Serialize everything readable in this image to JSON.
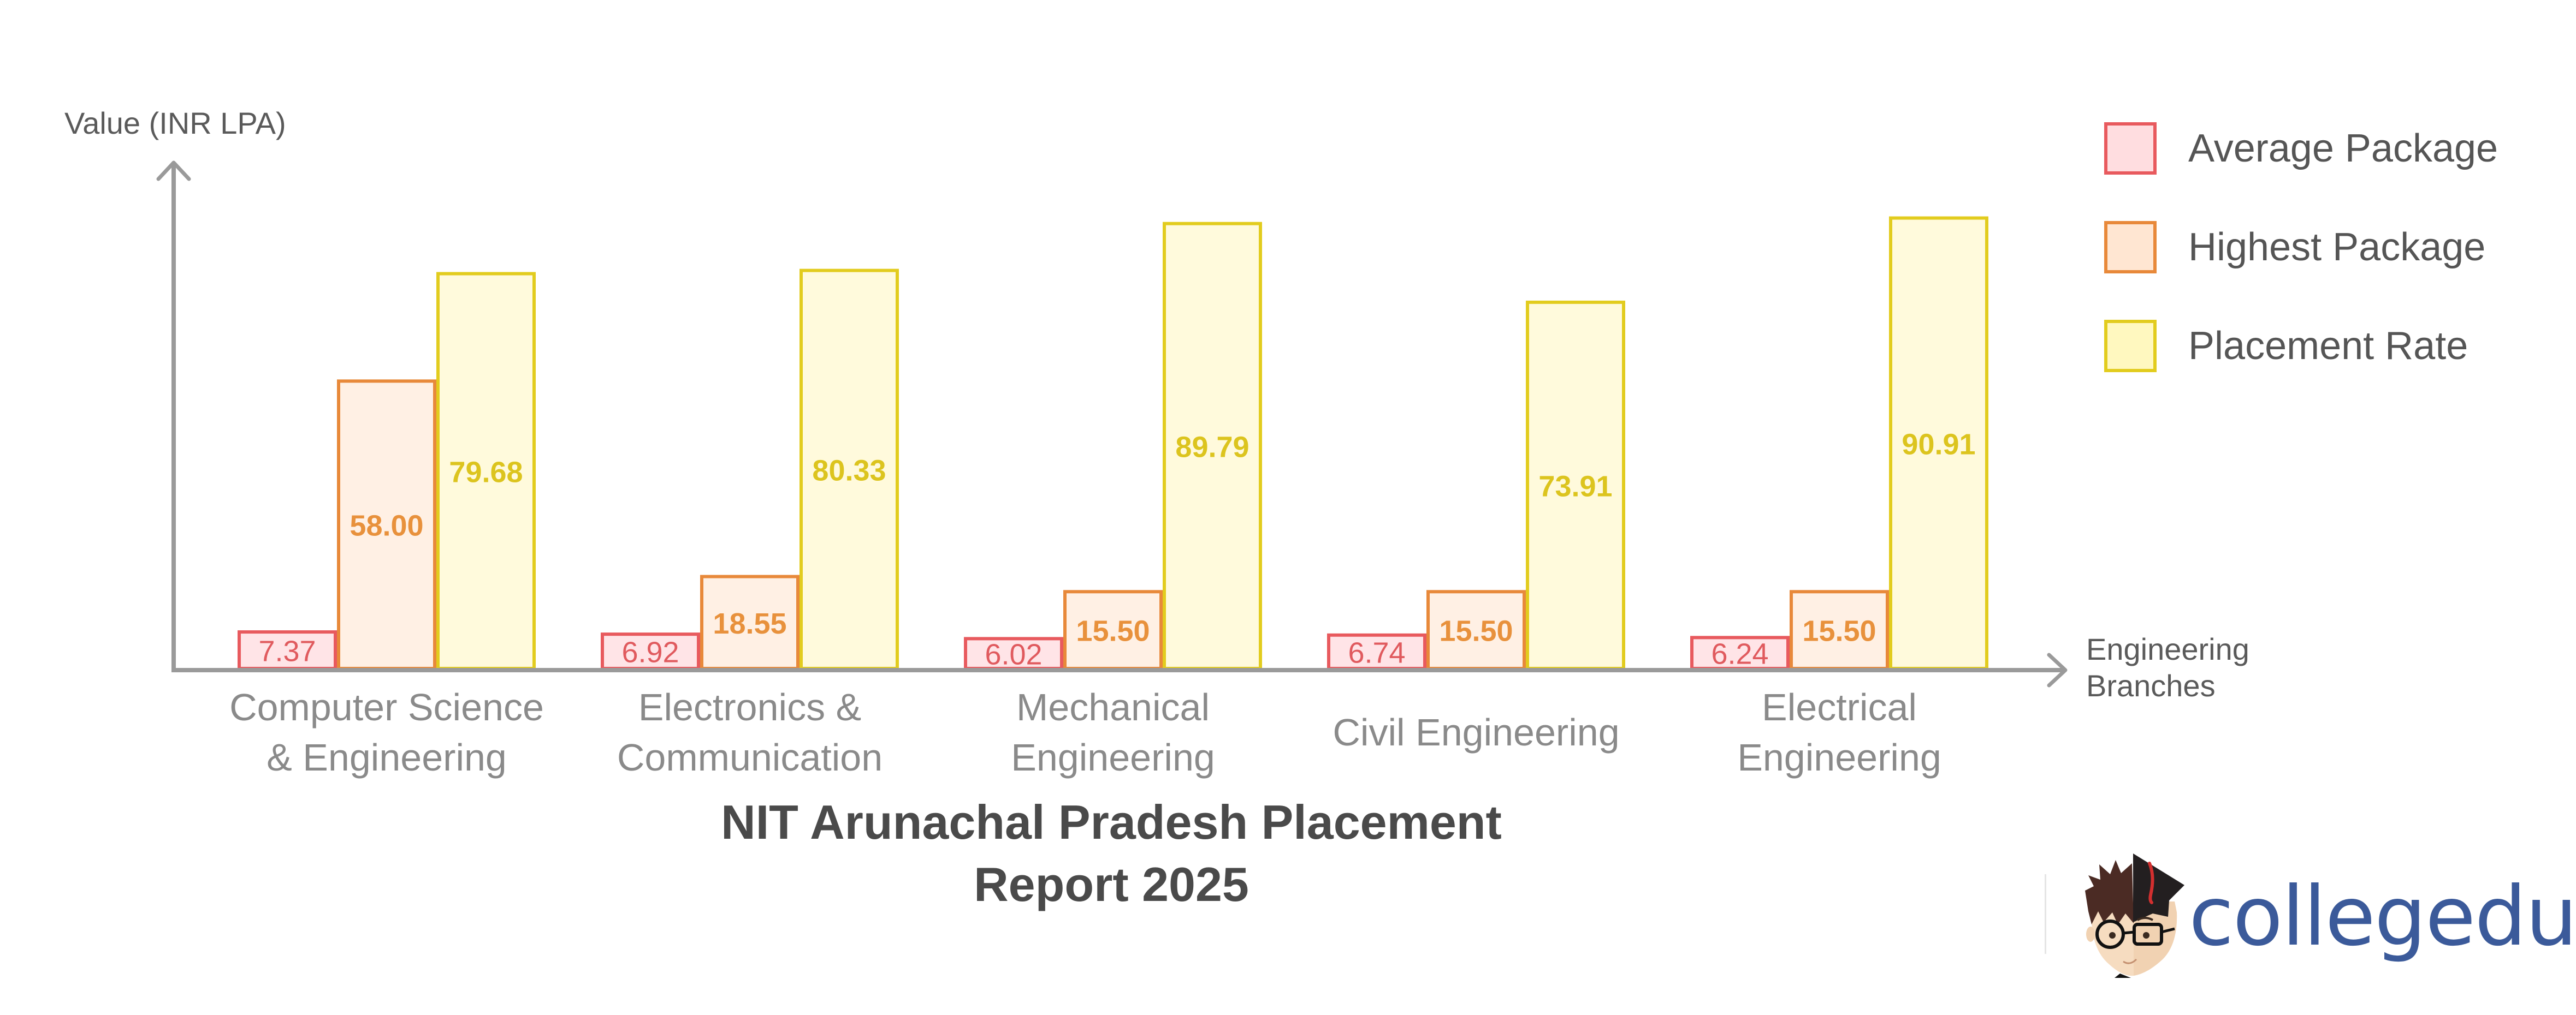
{
  "chart_data": {
    "type": "bar",
    "title": "NIT Arunachal Pradesh Placement Report 2025",
    "title_lines": [
      "NIT Arunachal Pradesh Placement",
      "Report 2025"
    ],
    "xlabel": "Engineering Branches",
    "xlabel_lines": [
      "Engineering",
      "Branches"
    ],
    "ylabel": "Value (INR LPA)",
    "categories": [
      "Computer Science & Engineering",
      "Electronics & Communication",
      "Mechanical Engineering",
      "Civil Engineering",
      "Electrical Engineering"
    ],
    "category_lines": [
      [
        "Computer Science",
        "& Engineering"
      ],
      [
        "Electronics &",
        "Communication"
      ],
      [
        "Mechanical",
        "Engineering"
      ],
      [
        "Civil Engineering"
      ],
      [
        "Electrical",
        "Engineering"
      ]
    ],
    "series": [
      {
        "name": "Average Package",
        "values": [
          7.37,
          6.92,
          6.02,
          6.74,
          6.24
        ],
        "labels": [
          "7.37",
          "6.92",
          "6.02",
          "6.74",
          "6.24"
        ],
        "stroke": "#e85a5e",
        "fill": "#ffe4e7",
        "text": "#e05a5e"
      },
      {
        "name": "Highest Package",
        "values": [
          58.0,
          18.55,
          15.5,
          15.5,
          15.5
        ],
        "labels": [
          "58.00",
          "18.55",
          "15.50",
          "15.50",
          "15.50"
        ],
        "stroke": "#e8893a",
        "fill": "#fff0e4",
        "text": "#e8913c"
      },
      {
        "name": "Placement Rate",
        "values": [
          79.68,
          80.33,
          89.79,
          73.91,
          90.91
        ],
        "labels": [
          "79.68",
          "80.33",
          "89.79",
          "73.91",
          "90.91"
        ],
        "stroke": "#e2cc1e",
        "fill": "#fffadc",
        "text": "#dcc41e"
      }
    ],
    "ylim": [
      0,
      100
    ],
    "grid": false,
    "legend_position": "top-right",
    "axis_color": "#9a9a9a"
  },
  "legend": {
    "items": [
      {
        "label": "Average Package",
        "stroke": "#e85a5e",
        "fill": "#ffdde0"
      },
      {
        "label": "Highest Package",
        "stroke": "#e8893a",
        "fill": "#ffe6d2"
      },
      {
        "label": "Placement Rate",
        "stroke": "#e2cc1e",
        "fill": "#fff8bf"
      }
    ]
  },
  "axes": {
    "y_title": "Value (INR LPA)",
    "x_title_line1": "Engineering",
    "x_title_line2": "Branches"
  },
  "title": {
    "line1": "NIT Arunachal Pradesh Placement",
    "line2": "Report 2025"
  },
  "branding": {
    "logo_text": "collegedunia",
    "logo_color": "#3b5a9a",
    "mascot_icon": "graduate-mascot-icon"
  }
}
